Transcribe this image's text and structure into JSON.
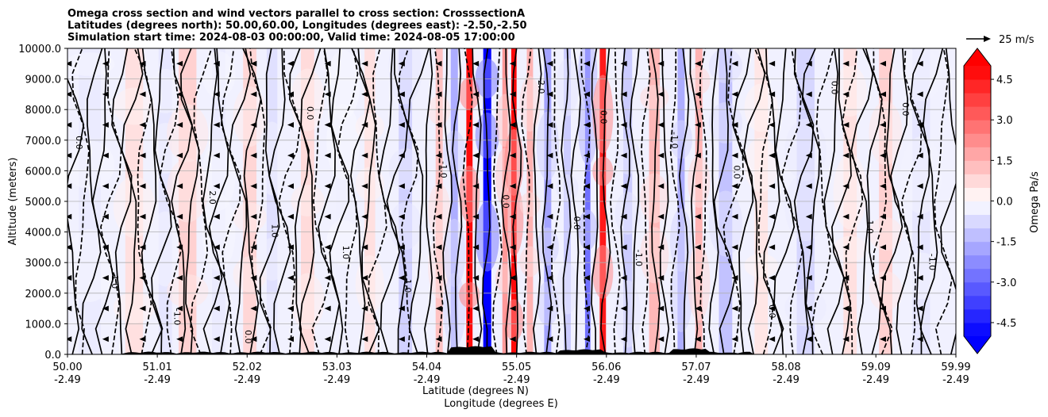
{
  "chart_data": {
    "type": "contour",
    "title_lines": [
      "Omega cross section and wind vectors parallel to cross section: CrosssectionA",
      "Latitudes (degrees north): 50.00,60.00, Longitudes (degrees east): -2.50,-2.50",
      "Simulation start time: 2024-08-03 00:00:00, Valid time: 2024-08-05 17:00:00"
    ],
    "ylabel": "Altitude (meters)",
    "xlabel_lat": "Latitude (degrees N)",
    "xlabel_lon": "Longitude (degrees E)",
    "ylim": [
      0,
      10000
    ],
    "y_ticks": [
      "0.0",
      "1000.0",
      "2000.0",
      "3000.0",
      "4000.0",
      "5000.0",
      "6000.0",
      "7000.0",
      "8000.0",
      "9000.0",
      "10000.0"
    ],
    "y_tick_values": [
      0,
      1000,
      2000,
      3000,
      4000,
      5000,
      6000,
      7000,
      8000,
      9000,
      10000
    ],
    "xlim": [
      50.0,
      59.99
    ],
    "x_ticks_lat": [
      "50.00",
      "51.01",
      "52.02",
      "53.03",
      "54.04",
      "55.05",
      "56.06",
      "57.07",
      "58.08",
      "59.09",
      "59.99"
    ],
    "x_tick_values": [
      50.0,
      51.01,
      52.02,
      53.03,
      54.04,
      55.05,
      56.06,
      57.07,
      58.08,
      59.09,
      59.99
    ],
    "x_ticks_lon": [
      "-2.49",
      "-2.49",
      "-2.49",
      "-2.49",
      "-2.49",
      "-2.49",
      "-2.49",
      "-2.49",
      "-2.49",
      "-2.49",
      "-2.49"
    ],
    "grid": true,
    "colorbar": {
      "label": "Omega Pa/s",
      "range": [
        -5.0,
        5.0
      ],
      "ticks": [
        "-4.5",
        "-3.0",
        "-1.5",
        "0.0",
        "1.5",
        "3.0",
        "4.5"
      ],
      "tick_values": [
        -4.5,
        -3.0,
        -1.5,
        0.0,
        1.5,
        3.0,
        4.5
      ],
      "extend": "both",
      "levels": 20,
      "cmap": "bwr"
    },
    "vector_key": {
      "label": "25 m/s"
    },
    "contour_labels": [
      "0.0",
      "0.0",
      "0.0",
      "1.0",
      "-1.0",
      "1.0",
      "-1.0",
      "0.0",
      "2.0",
      "-2.0",
      "1.0",
      "0.0",
      "-1.0",
      "0.0",
      "1.0",
      "0.0",
      "-1.0",
      "0.0",
      "0.0",
      "1.0",
      "0.0",
      "-1.0"
    ],
    "bands": [
      {
        "lat": 50.25,
        "width": 0.25,
        "omega": -0.4
      },
      {
        "lat": 50.75,
        "width": 0.2,
        "omega": 0.6
      },
      {
        "lat": 51.1,
        "width": 0.15,
        "omega": -0.5
      },
      {
        "lat": 51.35,
        "width": 0.2,
        "omega": 0.9
      },
      {
        "lat": 51.7,
        "width": 0.15,
        "omega": -0.4
      },
      {
        "lat": 52.05,
        "width": 0.15,
        "omega": 0.8
      },
      {
        "lat": 52.3,
        "width": 0.12,
        "omega": -0.6
      },
      {
        "lat": 52.7,
        "width": 0.15,
        "omega": 0.7
      },
      {
        "lat": 53.1,
        "width": 0.15,
        "omega": -0.3
      },
      {
        "lat": 53.4,
        "width": 0.12,
        "omega": 0.6
      },
      {
        "lat": 53.8,
        "width": 0.15,
        "omega": -0.9
      },
      {
        "lat": 54.18,
        "width": 0.08,
        "omega": 1.2
      },
      {
        "lat": 54.35,
        "width": 0.08,
        "omega": -1.6
      },
      {
        "lat": 54.52,
        "width": 0.07,
        "omega": 4.8
      },
      {
        "lat": 54.72,
        "width": 0.09,
        "omega": -5.0
      },
      {
        "lat": 54.92,
        "width": 0.06,
        "omega": 2.0
      },
      {
        "lat": 55.02,
        "width": 0.06,
        "omega": 4.8
      },
      {
        "lat": 55.2,
        "width": 0.07,
        "omega": 1.5
      },
      {
        "lat": 55.4,
        "width": 0.08,
        "omega": -1.8
      },
      {
        "lat": 55.62,
        "width": 0.08,
        "omega": -1.0
      },
      {
        "lat": 55.85,
        "width": 0.06,
        "omega": -2.8
      },
      {
        "lat": 56.02,
        "width": 0.07,
        "omega": 4.5
      },
      {
        "lat": 56.3,
        "width": 0.1,
        "omega": -1.0
      },
      {
        "lat": 56.6,
        "width": 0.12,
        "omega": 1.4
      },
      {
        "lat": 56.9,
        "width": 0.08,
        "omega": -1.6
      },
      {
        "lat": 57.1,
        "width": 0.08,
        "omega": 1.5
      },
      {
        "lat": 57.4,
        "width": 0.15,
        "omega": -1.2
      },
      {
        "lat": 57.8,
        "width": 0.15,
        "omega": 0.5
      },
      {
        "lat": 58.3,
        "width": 0.2,
        "omega": -0.8
      },
      {
        "lat": 58.8,
        "width": 0.15,
        "omega": 0.6
      },
      {
        "lat": 59.2,
        "width": 0.15,
        "omega": 0.9
      },
      {
        "lat": 59.6,
        "width": 0.2,
        "omega": -0.5
      }
    ]
  }
}
